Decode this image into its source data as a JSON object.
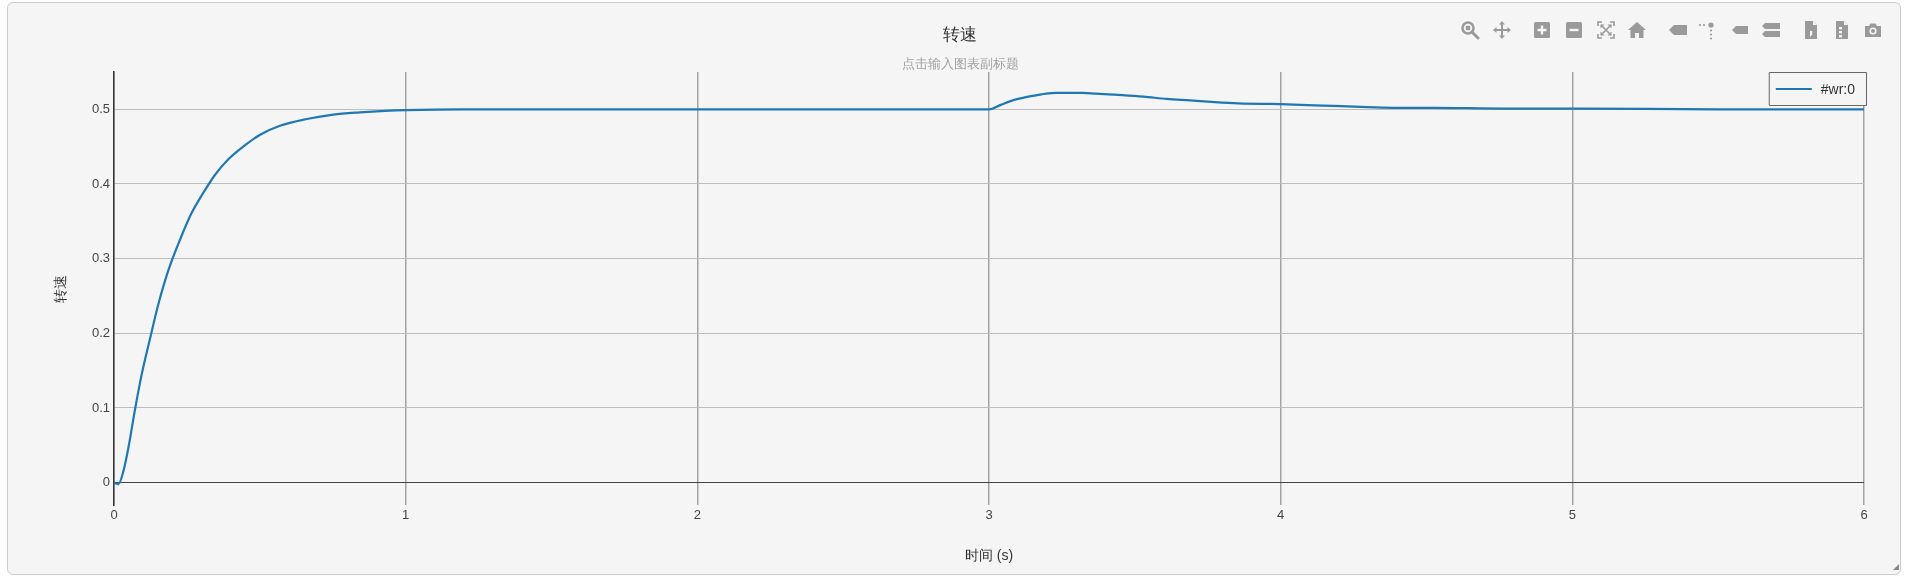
{
  "chart_data": {
    "type": "line",
    "title": "转速",
    "subtitle": "点击输入图表副标题",
    "xlabel": "时间 (s)",
    "ylabel": "转速",
    "x": [
      0,
      0.015,
      0.032,
      0.049,
      0.072,
      0.095,
      0.123,
      0.152,
      0.186,
      0.226,
      0.266,
      0.306,
      0.346,
      0.392,
      0.443,
      0.501,
      0.569,
      0.661,
      0.752,
      0.843,
      0.93,
      1.0,
      1.2,
      1.5,
      2.0,
      2.5,
      3.0,
      3.04,
      3.074,
      3.1,
      3.135,
      3.165,
      3.196,
      3.23,
      3.273,
      3.32,
      3.365,
      3.41,
      3.457,
      3.53,
      3.61,
      3.69,
      3.763,
      3.855,
      4.0,
      4.145,
      4.298,
      4.4,
      4.528,
      4.758,
      5.0,
      5.5,
      6.0
    ],
    "series": [
      {
        "name": "#wr:0",
        "color": "#1f77b4",
        "values": [
          0,
          -0.002,
          0.015,
          0.046,
          0.098,
          0.145,
          0.192,
          0.239,
          0.284,
          0.325,
          0.361,
          0.388,
          0.412,
          0.433,
          0.45,
          0.466,
          0.478,
          0.487,
          0.493,
          0.496,
          0.498,
          0.499,
          0.5,
          0.5,
          0.5,
          0.5,
          0.5,
          0.506,
          0.511,
          0.514,
          0.517,
          0.519,
          0.521,
          0.522,
          0.522,
          0.522,
          0.521,
          0.52,
          0.519,
          0.517,
          0.514,
          0.512,
          0.51,
          0.508,
          0.507,
          0.505,
          0.503,
          0.502,
          0.502,
          0.501,
          0.501,
          0.5,
          0.5
        ]
      }
    ],
    "xlim": [
      0,
      6
    ],
    "ylim": [
      -0.03,
      0.55
    ],
    "xticks": [
      0,
      1,
      2,
      3,
      4,
      5,
      6
    ],
    "yticks": [
      0,
      0.1,
      0.2,
      0.3,
      0.4,
      0.5
    ],
    "grid": true,
    "legend": "top right"
  }
}
